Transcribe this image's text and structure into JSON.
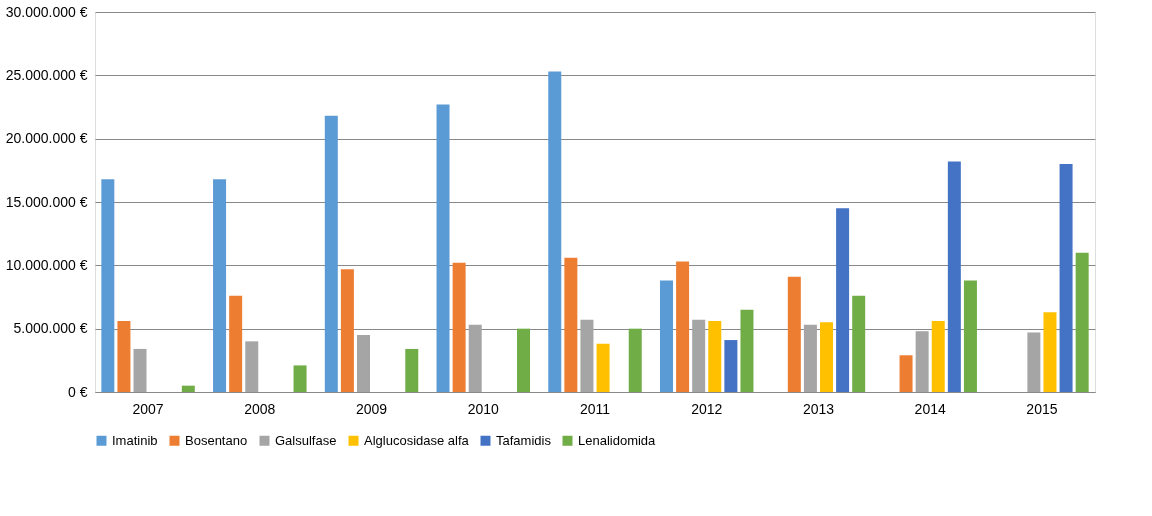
{
  "chart_data": {
    "type": "bar",
    "categories": [
      "2007",
      "2008",
      "2009",
      "2010",
      "2011",
      "2012",
      "2013",
      "2014",
      "2015"
    ],
    "series": [
      {
        "name": "Imatinib",
        "color": "#5b9bd5",
        "values": [
          16800000,
          16800000,
          21800000,
          22700000,
          25300000,
          8800000,
          null,
          null,
          null
        ]
      },
      {
        "name": "Bosentano",
        "color": "#ed7d31",
        "values": [
          5600000,
          7600000,
          9700000,
          10200000,
          10600000,
          10300000,
          9100000,
          2900000,
          null
        ]
      },
      {
        "name": "Galsulfase",
        "color": "#a5a5a5",
        "values": [
          3400000,
          4000000,
          4500000,
          5300000,
          5700000,
          5700000,
          5300000,
          4800000,
          4700000
        ]
      },
      {
        "name": "Alglucosidase alfa",
        "color": "#ffc000",
        "values": [
          null,
          null,
          null,
          null,
          3800000,
          5600000,
          5500000,
          5600000,
          6300000
        ]
      },
      {
        "name": "Tafamidis",
        "color": "#4472c4",
        "values": [
          null,
          null,
          null,
          null,
          null,
          4100000,
          14500000,
          18200000,
          18000000
        ]
      },
      {
        "name": "Lenalidomida",
        "color": "#70ad47",
        "values": [
          500000,
          2100000,
          3400000,
          5000000,
          5000000,
          6500000,
          7600000,
          8800000,
          11000000
        ]
      }
    ],
    "ylim": [
      0,
      30000000
    ],
    "yticks": [
      {
        "value": 0,
        "label": "0 €"
      },
      {
        "value": 5000000,
        "label": "5.000.000 €"
      },
      {
        "value": 10000000,
        "label": "10.000.000 €"
      },
      {
        "value": 15000000,
        "label": "15.000.000 €"
      },
      {
        "value": 20000000,
        "label": "20.000.000 €"
      },
      {
        "value": 25000000,
        "label": "25.000.000 €"
      },
      {
        "value": 30000000,
        "label": "30.000.000 €"
      }
    ],
    "grid": "y",
    "legend": "bottom"
  }
}
